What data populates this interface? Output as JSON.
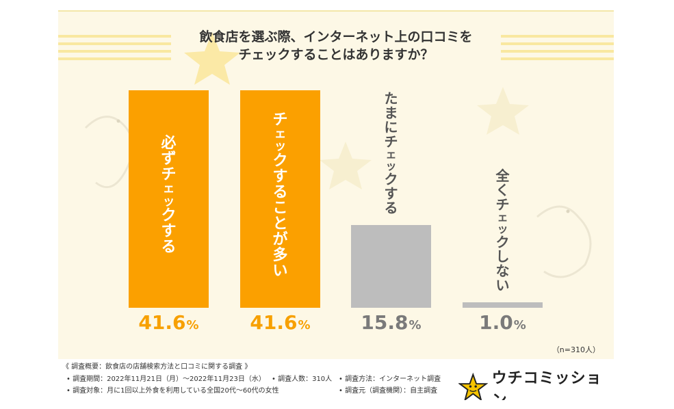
{
  "title_lines": [
    "飲食店を選ぶ際、インターネット上の口コミを",
    "チェックすることはありますか？"
  ],
  "colors": {
    "primary": "#fba000",
    "gray": "#bdbdbd",
    "primary_text": "#f7a000",
    "gray_text": "#7a7a7a",
    "background": "#fdf8e6"
  },
  "chart_data": {
    "type": "bar",
    "categories": [
      "必ずチェックする",
      "チェックすることが多い",
      "たまにチェックする",
      "全くチェックしない"
    ],
    "values": [
      41.6,
      41.6,
      15.8,
      1.0
    ],
    "value_labels": [
      {
        "num": "41.6",
        "unit": "%"
      },
      {
        "num": "41.6",
        "unit": "%"
      },
      {
        "num": "15.8",
        "unit": "%"
      },
      {
        "num": "1.0",
        "unit": "%"
      }
    ],
    "title": "飲食店を選ぶ際、インターネット上の口コミをチェックすることはありますか？",
    "ylim": [
      0,
      41.6
    ],
    "grid": false,
    "legend": "none"
  },
  "sample_size": "（n=310人）",
  "footer": {
    "summary": "《 調査概要：飲食店の店舗検索方法と口コミに関する調査 》",
    "period": "• 調査期間：2022年11月21日（月）〜2022年11月23日（水）",
    "count": "• 調査人数：310人",
    "method": "• 調査方法：インターネット調査",
    "target": "• 調査対象：月に1回以上外食を利用している全国20代〜60代の女性",
    "source": "• 調査元（調査機関）：自主調査"
  },
  "logo": {
    "text": "ウチコミッション",
    "icon": "star-mascot-icon"
  }
}
